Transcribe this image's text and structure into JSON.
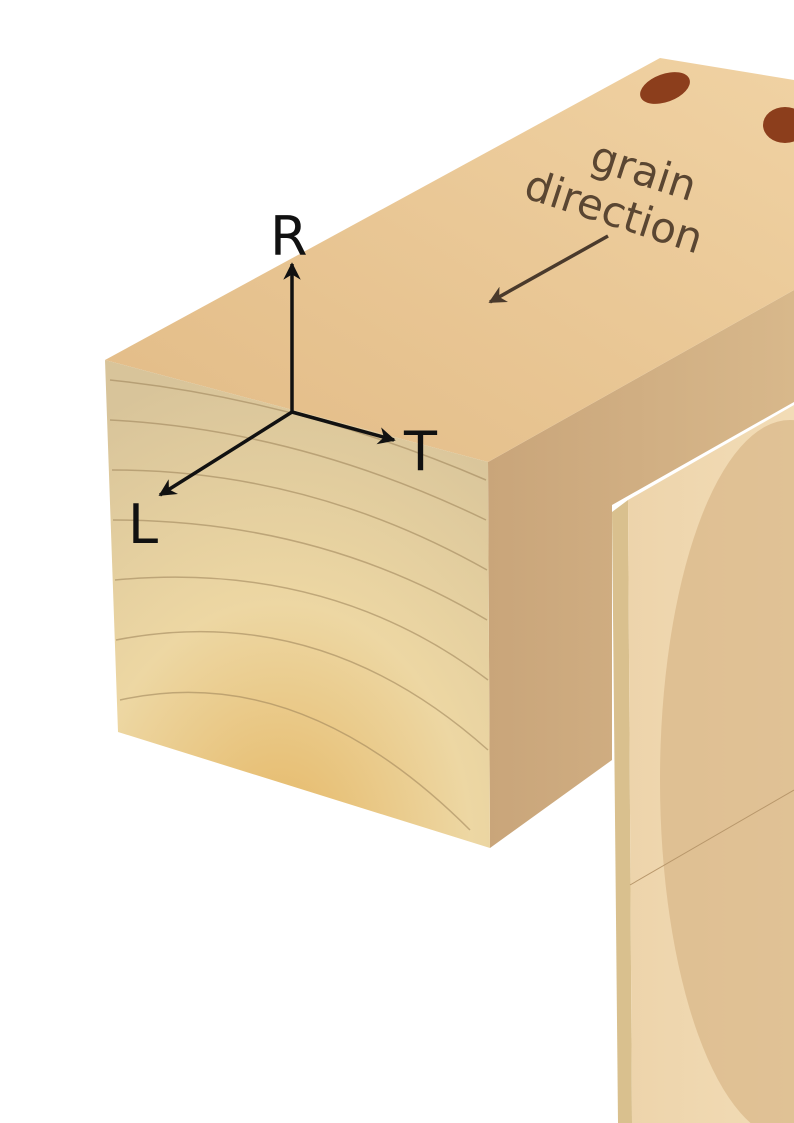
{
  "annotation": {
    "line1": "grain",
    "line2": "direction"
  },
  "axes": {
    "r": "R",
    "t": "T",
    "l": "L"
  }
}
